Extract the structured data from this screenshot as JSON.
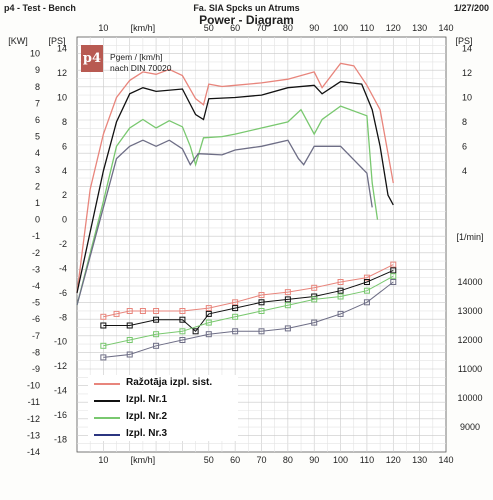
{
  "header": {
    "left": "p4 - Test - Bench",
    "center": "Fa. SIA Spcks un Atrums",
    "right": "1/27/200",
    "title": "Power - Diagram"
  },
  "logo": {
    "text": "p4"
  },
  "note": {
    "line1": "Pgem / [km/h]",
    "line2": "nach DIN 70020"
  },
  "chart_data": {
    "type": "line",
    "title": "Power - Diagram",
    "x_axis": {
      "label": "[km/h]",
      "range": [
        0,
        140
      ],
      "ticks": [
        10,
        20,
        30,
        40,
        50,
        60,
        70,
        80,
        90,
        100,
        110,
        120,
        130,
        140
      ],
      "tick_labels_top": [
        "10",
        "",
        "",
        "",
        "50",
        "60",
        "70",
        "80",
        "90",
        "100",
        "110",
        "120",
        "130",
        "140"
      ],
      "tick_labels_bottom": [
        "10",
        "",
        "",
        "",
        "50",
        "60",
        "70",
        "80",
        "90",
        "100",
        "110",
        "120",
        "130",
        "140"
      ]
    },
    "left_axis_kw": {
      "label": "[KW]",
      "range": [
        -14,
        11
      ],
      "ticks": [
        11,
        10,
        9,
        8,
        7,
        6,
        5,
        4,
        3,
        2,
        1,
        0,
        -1,
        -2,
        -3,
        -4,
        -5,
        -6,
        -7,
        -8,
        -9,
        -10,
        -11,
        -12,
        -13,
        -14
      ]
    },
    "left_axis_ps": {
      "label": "[PS]",
      "ticks": [
        14,
        12,
        10,
        8,
        6,
        4,
        2,
        0,
        -2,
        -4,
        -6,
        -8,
        -10,
        -12,
        -14,
        -16,
        -18
      ]
    },
    "right_axis_ps": {
      "label": "[PS]",
      "ticks": [
        14,
        12,
        10,
        8,
        6,
        4
      ]
    },
    "right_axis_rpm": {
      "label": "[1/min]",
      "ticks": [
        14000,
        13000,
        12000,
        11000,
        10000,
        9000
      ]
    },
    "grid": true,
    "legend_position": "bottom-left",
    "series": [
      {
        "name": "Ražotāja izpl. sist.",
        "color": "#e8857c",
        "power_ps": [
          [
            0,
            -6
          ],
          [
            5,
            2.5
          ],
          [
            10,
            7
          ],
          [
            15,
            10
          ],
          [
            20,
            11.4
          ],
          [
            25,
            12.1
          ],
          [
            30,
            11.9
          ],
          [
            35,
            12.3
          ],
          [
            40,
            11.8
          ],
          [
            45,
            9.9
          ],
          [
            48,
            9.4
          ],
          [
            50,
            11.1
          ],
          [
            55,
            10.9
          ],
          [
            60,
            11
          ],
          [
            70,
            11.2
          ],
          [
            80,
            11.5
          ],
          [
            90,
            12.1
          ],
          [
            93,
            10.8
          ],
          [
            100,
            12.8
          ],
          [
            105,
            12.6
          ],
          [
            110,
            11
          ],
          [
            115,
            9
          ],
          [
            120,
            3
          ]
        ],
        "rpm": [
          [
            10,
            12800
          ],
          [
            15,
            12900
          ],
          [
            20,
            13000
          ],
          [
            25,
            13000
          ],
          [
            30,
            13000
          ],
          [
            40,
            13000
          ],
          [
            50,
            13100
          ],
          [
            60,
            13300
          ],
          [
            70,
            13550
          ],
          [
            80,
            13650
          ],
          [
            90,
            13800
          ],
          [
            100,
            14000
          ],
          [
            110,
            14150
          ],
          [
            120,
            14600
          ]
        ]
      },
      {
        "name": "Izpl. Nr.1",
        "color": "#111111",
        "power_ps": [
          [
            0,
            -6
          ],
          [
            10,
            4
          ],
          [
            15,
            8
          ],
          [
            20,
            10.3
          ],
          [
            25,
            10.8
          ],
          [
            30,
            10.5
          ],
          [
            40,
            10.7
          ],
          [
            45,
            8.6
          ],
          [
            48,
            8.2
          ],
          [
            50,
            9.9
          ],
          [
            60,
            10.0
          ],
          [
            70,
            10.2
          ],
          [
            80,
            10.8
          ],
          [
            90,
            11.0
          ],
          [
            93,
            10.3
          ],
          [
            100,
            11.3
          ],
          [
            108,
            11.1
          ],
          [
            112,
            9
          ],
          [
            115,
            6
          ],
          [
            118,
            2
          ],
          [
            120,
            1.2
          ]
        ],
        "rpm": [
          [
            10,
            12500
          ],
          [
            20,
            12500
          ],
          [
            30,
            12700
          ],
          [
            40,
            12700
          ],
          [
            45,
            12300
          ],
          [
            50,
            12900
          ],
          [
            60,
            13100
          ],
          [
            70,
            13300
          ],
          [
            80,
            13400
          ],
          [
            90,
            13500
          ],
          [
            100,
            13700
          ],
          [
            110,
            14000
          ],
          [
            120,
            14400
          ]
        ]
      },
      {
        "name": "Izpl. Nr.2",
        "color": "#79c86f",
        "power_ps": [
          [
            0,
            -7
          ],
          [
            10,
            1.5
          ],
          [
            15,
            6
          ],
          [
            20,
            7.5
          ],
          [
            25,
            8.2
          ],
          [
            30,
            7.5
          ],
          [
            35,
            8.1
          ],
          [
            40,
            7.6
          ],
          [
            43,
            6
          ],
          [
            45,
            4.5
          ],
          [
            48,
            6.7
          ],
          [
            55,
            6.8
          ],
          [
            60,
            7
          ],
          [
            70,
            7.5
          ],
          [
            80,
            8
          ],
          [
            85,
            9
          ],
          [
            90,
            7
          ],
          [
            93,
            8.2
          ],
          [
            100,
            9.3
          ],
          [
            110,
            8.5
          ],
          [
            112,
            3
          ],
          [
            114,
            0
          ]
        ],
        "rpm": [
          [
            10,
            11800
          ],
          [
            20,
            12000
          ],
          [
            30,
            12200
          ],
          [
            40,
            12300
          ],
          [
            50,
            12600
          ],
          [
            60,
            12800
          ],
          [
            70,
            13000
          ],
          [
            80,
            13200
          ],
          [
            90,
            13400
          ],
          [
            100,
            13500
          ],
          [
            110,
            13700
          ],
          [
            120,
            14200
          ]
        ]
      },
      {
        "name": "Izpl. Nr.3",
        "color": "#6e6e86",
        "power_ps": [
          [
            0,
            -7
          ],
          [
            10,
            1
          ],
          [
            15,
            5
          ],
          [
            20,
            6
          ],
          [
            25,
            6.5
          ],
          [
            30,
            6
          ],
          [
            35,
            6.5
          ],
          [
            40,
            5.8
          ],
          [
            43,
            4.5
          ],
          [
            46,
            5.4
          ],
          [
            55,
            5.3
          ],
          [
            60,
            5.7
          ],
          [
            70,
            6
          ],
          [
            80,
            6.5
          ],
          [
            84,
            5
          ],
          [
            86,
            4.5
          ],
          [
            90,
            6
          ],
          [
            100,
            6
          ],
          [
            110,
            3.8
          ],
          [
            112,
            1
          ]
        ],
        "rpm": [
          [
            10,
            11400
          ],
          [
            20,
            11500
          ],
          [
            30,
            11800
          ],
          [
            40,
            12000
          ],
          [
            50,
            12200
          ],
          [
            60,
            12300
          ],
          [
            70,
            12300
          ],
          [
            80,
            12400
          ],
          [
            90,
            12600
          ],
          [
            100,
            12900
          ],
          [
            110,
            13300
          ],
          [
            120,
            14000
          ]
        ]
      }
    ]
  }
}
